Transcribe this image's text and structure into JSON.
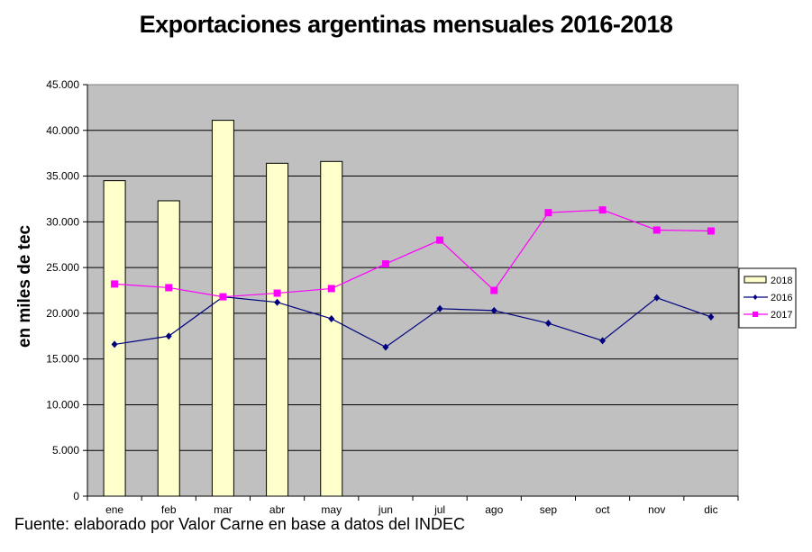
{
  "chart_data": {
    "type": "bar+line",
    "title": "Exportaciones argentinas mensuales 2016-2018",
    "xlabel": "",
    "ylabel": "en miles de tec",
    "ylim": [
      0,
      45000
    ],
    "yticks": [
      0,
      5000,
      10000,
      15000,
      20000,
      25000,
      30000,
      35000,
      40000,
      45000
    ],
    "ytick_labels": [
      "0",
      "5.000",
      "10.000",
      "15.000",
      "20.000",
      "25.000",
      "30.000",
      "35.000",
      "40.000",
      "45.000"
    ],
    "categories": [
      "ene",
      "feb",
      "mar",
      "abr",
      "may",
      "jun",
      "jul",
      "ago",
      "sep",
      "oct",
      "nov",
      "dic"
    ],
    "grid": true,
    "legend_position": "right",
    "series": [
      {
        "name": "2018",
        "type": "bar",
        "color": "#FFFFCC",
        "values": [
          34500,
          32300,
          41100,
          36400,
          36600,
          null,
          null,
          null,
          null,
          null,
          null,
          null
        ]
      },
      {
        "name": "2016",
        "type": "line",
        "marker": "diamond",
        "color": "#000080",
        "values": [
          16600,
          17500,
          21800,
          21200,
          19400,
          16300,
          20500,
          20300,
          18900,
          17000,
          21700,
          19600
        ]
      },
      {
        "name": "2017",
        "type": "line",
        "marker": "square",
        "color": "#FF00FF",
        "values": [
          23200,
          22800,
          21800,
          22200,
          22700,
          25400,
          28000,
          22500,
          31000,
          31300,
          29100,
          29000
        ]
      }
    ],
    "plot_background": "#C0C0C0"
  },
  "source_note": "Fuente: elaborado por  Valor Carne en base a datos del INDEC"
}
